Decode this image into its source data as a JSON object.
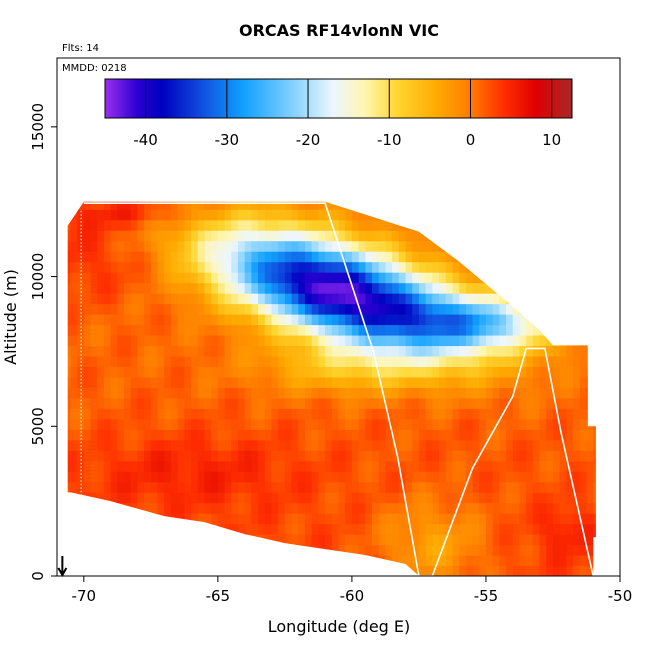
{
  "chart_data": {
    "type": "heatmap",
    "title": "ORCAS RF14vlonN VIC",
    "flights_label": "Flts: 14",
    "date_label": "MMDD: 0218",
    "xlabel": "Longitude (deg E)",
    "ylabel": "Altitude (m)",
    "xlim": [
      -71.0,
      -50.0
    ],
    "ylim": [
      0,
      17300
    ],
    "x_ticks": [
      -70,
      -65,
      -60,
      -55,
      -50
    ],
    "x_tick_labels": [
      "-70",
      "-65",
      "-60",
      "-55",
      "-50"
    ],
    "y_ticks": [
      0,
      5000,
      10000,
      15000
    ],
    "y_tick_labels": [
      "0",
      "5000",
      "10000",
      "15000"
    ],
    "colorbar": {
      "range": [
        -45,
        12.5
      ],
      "ticks": [
        -40,
        -30,
        -20,
        -10,
        0,
        10
      ],
      "tick_labels": [
        "-40",
        "-30",
        "-20",
        "-10",
        "0",
        "10"
      ],
      "stops": [
        {
          "value": -45,
          "color": "#9a30f0"
        },
        {
          "value": -41,
          "color": "#2a00d0"
        },
        {
          "value": -38,
          "color": "#0000c0"
        },
        {
          "value": -33,
          "color": "#1050e0"
        },
        {
          "value": -28,
          "color": "#10a0ff"
        },
        {
          "value": -22,
          "color": "#80d0ff"
        },
        {
          "value": -17,
          "color": "#ecf6ff"
        },
        {
          "value": -13,
          "color": "#fff6b0"
        },
        {
          "value": -9,
          "color": "#ffd630"
        },
        {
          "value": -4,
          "color": "#ffa800"
        },
        {
          "value": 0,
          "color": "#ff7c00"
        },
        {
          "value": 4,
          "color": "#ff3000"
        },
        {
          "value": 8,
          "color": "#e00000"
        },
        {
          "value": 12.5,
          "color": "#a82828"
        }
      ]
    },
    "field": {
      "description": "Temperature (deg C) versus longitude and altitude",
      "top_boundary": [
        [
          -70.0,
          12500
        ],
        [
          -61.0,
          12500
        ],
        [
          -57.5,
          11500
        ],
        [
          -56.0,
          10500
        ],
        [
          -54.0,
          9000
        ],
        [
          -53.0,
          8200
        ],
        [
          -52.5,
          7700
        ],
        [
          -51.3,
          7700
        ]
      ],
      "bottom_boundary": [
        [
          -70.5,
          2800
        ],
        [
          -69.0,
          2500
        ],
        [
          -67.0,
          2000
        ],
        [
          -65.5,
          1800
        ],
        [
          -64.0,
          1400
        ],
        [
          -62.5,
          1100
        ],
        [
          -61.0,
          900
        ],
        [
          -59.5,
          700
        ],
        [
          -58.0,
          400
        ],
        [
          -57.5,
          0
        ],
        [
          -51.0,
          0
        ],
        [
          -51.0,
          1300
        ],
        [
          -50.9,
          1300
        ],
        [
          -50.9,
          5000
        ],
        [
          -51.2,
          5000
        ],
        [
          -51.2,
          7700
        ]
      ],
      "left_edge_longitude": -70.6,
      "cold_core": {
        "longitude": -60.5,
        "altitude": 9500,
        "value": -42
      }
    },
    "flight_track": [
      [
        -70.0,
        12450
      ],
      [
        -61.0,
        12450
      ],
      [
        -59.2,
        7500
      ],
      [
        -58.3,
        4000
      ],
      [
        -57.5,
        0
      ],
      [
        -57.0,
        0
      ],
      [
        -55.5,
        3600
      ],
      [
        -54.0,
        6000
      ],
      [
        -53.5,
        7600
      ],
      [
        -52.8,
        7600
      ],
      [
        -52.2,
        4800
      ],
      [
        -51.0,
        0
      ]
    ],
    "flight_track_left": [
      [
        -70.1,
        12200
      ],
      [
        -70.1,
        0
      ]
    ],
    "arrow_longitude": -70.8
  }
}
